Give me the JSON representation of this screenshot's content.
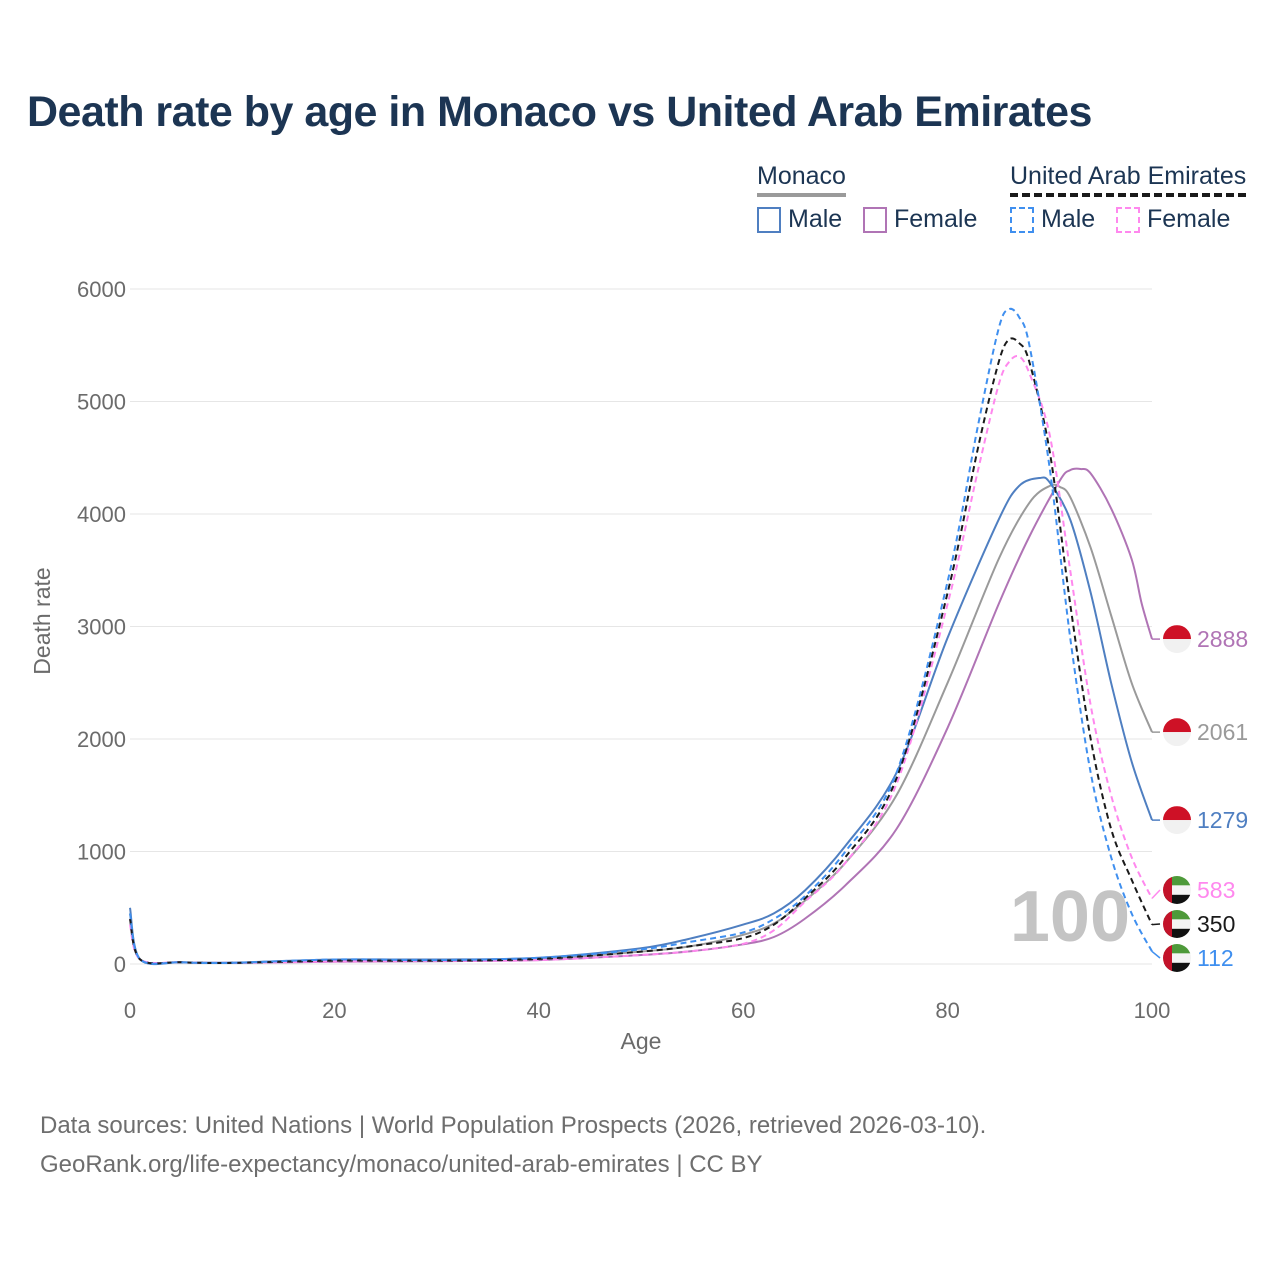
{
  "title": "Death rate by age in Monaco vs United Arab Emirates",
  "legend": {
    "group1": {
      "title": "Monaco",
      "male": "Male",
      "female": "Female"
    },
    "group2": {
      "title": "United Arab Emirates",
      "male": "Male",
      "female": "Female"
    }
  },
  "footer": {
    "line1": "Data sources: United Nations | World Population Prospects (2026, retrieved 2026-03-10).",
    "line2": "GeoRank.org/life-expectancy/monaco/united-arab-emirates | CC BY"
  },
  "colors": {
    "monaco_male": "#4f7fc1",
    "monaco_female": "#b074b5",
    "monaco_total": "#9a9a9a",
    "uae_male": "#3f8fef",
    "uae_female": "#ff88ee",
    "uae_total": "#1a1a1a",
    "title": "#1c3553",
    "grid": "#e6e6e6",
    "axis_text": "#6b6b6b"
  },
  "chart_data": {
    "type": "line",
    "title": "Death rate by age in Monaco vs United Arab Emirates",
    "xlabel": "Age",
    "ylabel": "Death rate",
    "xlim": [
      0,
      100
    ],
    "ylim": [
      0,
      6000
    ],
    "xticks": [
      0,
      20,
      40,
      60,
      80,
      100
    ],
    "yticks": [
      0,
      1000,
      2000,
      3000,
      4000,
      5000,
      6000
    ],
    "watermark": "100",
    "series": [
      {
        "name": "Monaco Female",
        "key": "monaco_female",
        "dashed": false,
        "end_label": "2888",
        "flag": "monaco",
        "points": [
          [
            0,
            400
          ],
          [
            1,
            40
          ],
          [
            5,
            15
          ],
          [
            10,
            10
          ],
          [
            20,
            20
          ],
          [
            30,
            25
          ],
          [
            40,
            35
          ],
          [
            50,
            80
          ],
          [
            55,
            115
          ],
          [
            60,
            175
          ],
          [
            63,
            240
          ],
          [
            66,
            400
          ],
          [
            70,
            700
          ],
          [
            75,
            1200
          ],
          [
            80,
            2100
          ],
          [
            85,
            3200
          ],
          [
            88,
            3800
          ],
          [
            91,
            4300
          ],
          [
            92,
            4390
          ],
          [
            93,
            4400
          ],
          [
            94,
            4360
          ],
          [
            96,
            4050
          ],
          [
            98,
            3600
          ],
          [
            99,
            3200
          ],
          [
            100,
            2888
          ]
        ]
      },
      {
        "name": "Monaco",
        "key": "monaco_total",
        "dashed": false,
        "end_label": "2061",
        "flag": "monaco",
        "points": [
          [
            0,
            450
          ],
          [
            1,
            40
          ],
          [
            5,
            15
          ],
          [
            10,
            10
          ],
          [
            20,
            30
          ],
          [
            30,
            30
          ],
          [
            40,
            45
          ],
          [
            50,
            110
          ],
          [
            55,
            160
          ],
          [
            60,
            260
          ],
          [
            63,
            360
          ],
          [
            66,
            560
          ],
          [
            70,
            900
          ],
          [
            75,
            1500
          ],
          [
            80,
            2500
          ],
          [
            85,
            3600
          ],
          [
            88,
            4100
          ],
          [
            90,
            4250
          ],
          [
            91,
            4240
          ],
          [
            92,
            4150
          ],
          [
            94,
            3700
          ],
          [
            96,
            3100
          ],
          [
            98,
            2500
          ],
          [
            100,
            2061
          ]
        ]
      },
      {
        "name": "Monaco Male",
        "key": "monaco_male",
        "dashed": false,
        "end_label": "1279",
        "flag": "monaco",
        "points": [
          [
            0,
            500
          ],
          [
            1,
            40
          ],
          [
            5,
            15
          ],
          [
            10,
            12
          ],
          [
            20,
            40
          ],
          [
            30,
            40
          ],
          [
            40,
            55
          ],
          [
            50,
            140
          ],
          [
            55,
            230
          ],
          [
            60,
            350
          ],
          [
            63,
            450
          ],
          [
            66,
            650
          ],
          [
            70,
            1050
          ],
          [
            75,
            1700
          ],
          [
            80,
            2900
          ],
          [
            85,
            3950
          ],
          [
            87,
            4250
          ],
          [
            89,
            4320
          ],
          [
            90,
            4280
          ],
          [
            92,
            3950
          ],
          [
            94,
            3300
          ],
          [
            96,
            2500
          ],
          [
            98,
            1800
          ],
          [
            100,
            1279
          ]
        ]
      },
      {
        "name": "United Arab Emirates Female",
        "key": "uae_female",
        "dashed": true,
        "end_label": "583",
        "flag": "uae",
        "points": [
          [
            0,
            350
          ],
          [
            1,
            40
          ],
          [
            5,
            15
          ],
          [
            10,
            10
          ],
          [
            20,
            22
          ],
          [
            30,
            28
          ],
          [
            40,
            35
          ],
          [
            50,
            80
          ],
          [
            55,
            115
          ],
          [
            60,
            180
          ],
          [
            63,
            300
          ],
          [
            66,
            550
          ],
          [
            70,
            900
          ],
          [
            75,
            1600
          ],
          [
            80,
            3200
          ],
          [
            83,
            4400
          ],
          [
            85,
            5150
          ],
          [
            86,
            5350
          ],
          [
            87,
            5400
          ],
          [
            88,
            5250
          ],
          [
            90,
            4700
          ],
          [
            92,
            3500
          ],
          [
            94,
            2300
          ],
          [
            96,
            1500
          ],
          [
            98,
            950
          ],
          [
            100,
            583
          ]
        ]
      },
      {
        "name": "United Arab Emirates",
        "key": "uae_total",
        "dashed": true,
        "end_label": "350",
        "flag": "uae",
        "points": [
          [
            0,
            400
          ],
          [
            1,
            40
          ],
          [
            5,
            15
          ],
          [
            10,
            10
          ],
          [
            20,
            30
          ],
          [
            30,
            30
          ],
          [
            40,
            45
          ],
          [
            50,
            110
          ],
          [
            55,
            160
          ],
          [
            60,
            230
          ],
          [
            63,
            350
          ],
          [
            66,
            580
          ],
          [
            70,
            950
          ],
          [
            75,
            1650
          ],
          [
            80,
            3300
          ],
          [
            83,
            4600
          ],
          [
            85,
            5350
          ],
          [
            86,
            5550
          ],
          [
            87,
            5520
          ],
          [
            88,
            5350
          ],
          [
            90,
            4550
          ],
          [
            92,
            3200
          ],
          [
            94,
            2000
          ],
          [
            96,
            1200
          ],
          [
            98,
            750
          ],
          [
            100,
            350
          ]
        ]
      },
      {
        "name": "United Arab Emirates Male",
        "key": "uae_male",
        "dashed": true,
        "end_label": "112",
        "flag": "uae",
        "points": [
          [
            0,
            450
          ],
          [
            1,
            40
          ],
          [
            5,
            15
          ],
          [
            10,
            10
          ],
          [
            20,
            40
          ],
          [
            30,
            35
          ],
          [
            40,
            55
          ],
          [
            50,
            130
          ],
          [
            55,
            200
          ],
          [
            60,
            280
          ],
          [
            63,
            400
          ],
          [
            66,
            600
          ],
          [
            70,
            1000
          ],
          [
            75,
            1700
          ],
          [
            80,
            3400
          ],
          [
            83,
            4800
          ],
          [
            85,
            5650
          ],
          [
            86,
            5820
          ],
          [
            87,
            5750
          ],
          [
            88,
            5500
          ],
          [
            90,
            4400
          ],
          [
            92,
            2900
          ],
          [
            94,
            1700
          ],
          [
            96,
            950
          ],
          [
            98,
            450
          ],
          [
            100,
            112
          ]
        ]
      }
    ]
  }
}
